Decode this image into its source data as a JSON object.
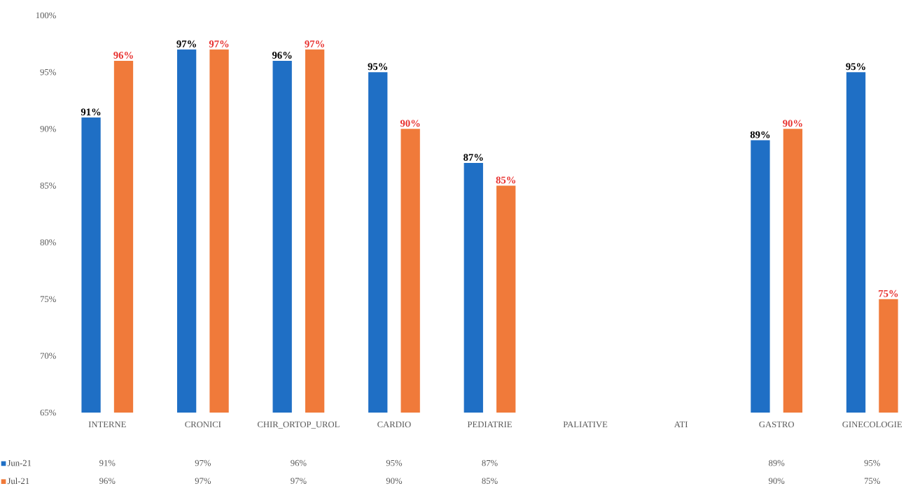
{
  "chart_data": {
    "type": "bar",
    "categories": [
      "INTERNE",
      "CRONICI",
      "CHIR_ORTOP_UROL",
      "CARDIO",
      "PEDIATRIE",
      "PALIATIVE",
      "ATI",
      "GASTRO",
      "GINECOLOGIE"
    ],
    "series": [
      {
        "name": "Jun-21",
        "color": "#1f6fc5",
        "values": [
          91,
          97,
          96,
          95,
          87,
          null,
          null,
          89,
          95
        ],
        "value_labels": [
          "91%",
          "97%",
          "96%",
          "95%",
          "87%",
          null,
          null,
          "89%",
          "95%"
        ]
      },
      {
        "name": "Jul-21",
        "color": "#f07a3a",
        "values": [
          96,
          97,
          97,
          90,
          85,
          null,
          null,
          90,
          75
        ],
        "value_labels": [
          "96%",
          "97%",
          "97%",
          "90%",
          "85%",
          null,
          null,
          "90%",
          "75%"
        ]
      }
    ],
    "ylim": [
      65,
      100
    ],
    "yticks": [
      {
        "value": 65,
        "label": "65%"
      },
      {
        "value": 70,
        "label": "70%"
      },
      {
        "value": 75,
        "label": "75%"
      },
      {
        "value": 80,
        "label": "80%"
      },
      {
        "value": 85,
        "label": "85%"
      },
      {
        "value": 90,
        "label": "90%"
      },
      {
        "value": 95,
        "label": "95%"
      },
      {
        "value": 100,
        "label": "100%"
      }
    ],
    "grid": false,
    "legend": "bottom left"
  }
}
